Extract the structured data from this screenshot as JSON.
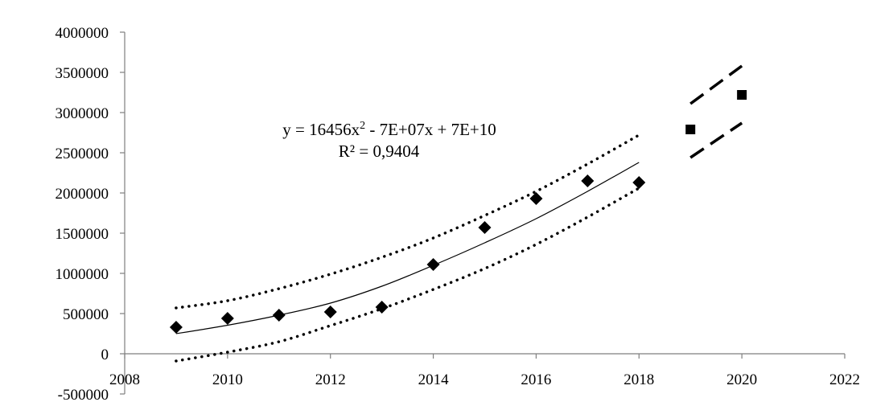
{
  "chart_data": {
    "type": "scatter",
    "title": "",
    "xlabel": "",
    "ylabel": "",
    "xlim": [
      2008,
      2022
    ],
    "ylim": [
      -500000,
      4000000
    ],
    "x_ticks": [
      "2008",
      "2010",
      "2012",
      "2014",
      "2016",
      "2018",
      "2020",
      "2022"
    ],
    "y_ticks": [
      "4000000",
      "3500000",
      "3000000",
      "2500000",
      "2000000",
      "1500000",
      "1000000",
      "500000",
      "0",
      "-500000"
    ],
    "grid": false,
    "legend": "none",
    "series": [
      {
        "marker": "diamond",
        "x": [
          2009,
          2010,
          2011,
          2012,
          2013,
          2014,
          2015,
          2016,
          2017,
          2018
        ],
        "y": [
          330000,
          440000,
          480000,
          520000,
          580000,
          1110000,
          1570000,
          1930000,
          2150000,
          2130000
        ]
      },
      {
        "marker": "square",
        "x": [
          2019,
          2020
        ],
        "y": [
          2790000,
          3220000
        ]
      }
    ],
    "trendline": {
      "x": [
        2009,
        2010,
        2011,
        2012,
        2013,
        2014,
        2015,
        2016,
        2017,
        2018
      ],
      "y": [
        250000,
        355000,
        480000,
        630000,
        840000,
        1100000,
        1380000,
        1680000,
        2020000,
        2380000
      ]
    },
    "confidence_upper": {
      "x": [
        2009,
        2010,
        2011,
        2012,
        2013,
        2014,
        2015,
        2016,
        2017,
        2018
      ],
      "y": [
        570000,
        660000,
        810000,
        990000,
        1200000,
        1440000,
        1720000,
        2020000,
        2360000,
        2720000
      ]
    },
    "confidence_lower": {
      "x": [
        2009,
        2010,
        2011,
        2012,
        2013,
        2014,
        2015,
        2016,
        2017,
        2018
      ],
      "y": [
        -90000,
        20000,
        150000,
        350000,
        560000,
        800000,
        1060000,
        1360000,
        1700000,
        2060000
      ]
    },
    "forecast_upper": {
      "x": [
        2019,
        2020
      ],
      "y": [
        3110000,
        3580000
      ]
    },
    "forecast_lower": {
      "x": [
        2019,
        2020
      ],
      "y": [
        2440000,
        2870000
      ]
    },
    "annotations": {
      "equation_prefix": "y = 16456x",
      "equation_exp": "2",
      "equation_rest": " - 7E+07x + 7E+10",
      "r_squared": "R² = 0,9404"
    },
    "colors": {
      "marks": "#000000",
      "background": "#ffffff"
    }
  }
}
